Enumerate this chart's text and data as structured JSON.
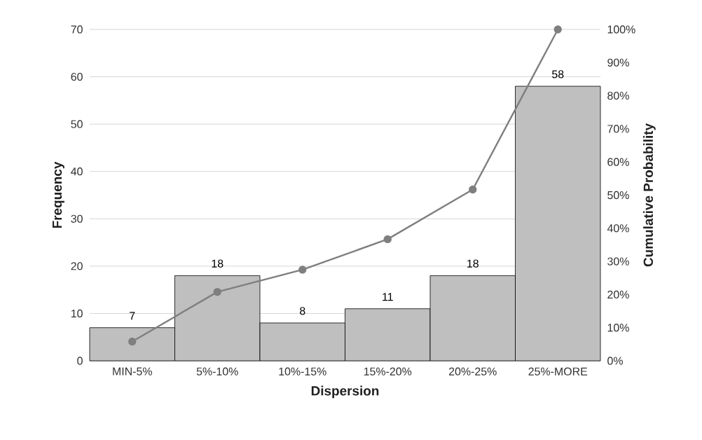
{
  "chart_data": {
    "type": "bar",
    "xlabel": "Dispersion",
    "ylabel": "Frequency",
    "y2label": "Cumulative Probability",
    "categories": [
      "MIN-5%",
      "5%-10%",
      "10%-15%",
      "15%-20%",
      "20%-25%",
      "25%-MORE"
    ],
    "series": [
      {
        "color": "#bfbfbf",
        "values": [
          7,
          18,
          8,
          11,
          18,
          58
        ],
        "value_labels": [
          "7",
          "18",
          "8",
          "11",
          "18",
          "58"
        ]
      },
      {
        "type": "line",
        "axis": "y2",
        "color": "#7f7f7f",
        "marker": "circle",
        "line_style": "solid",
        "values": [
          5.8,
          20.8,
          27.5,
          36.7,
          51.7,
          100
        ]
      }
    ],
    "ylim": [
      0,
      70
    ],
    "yticks": [
      0,
      10,
      20,
      30,
      40,
      50,
      60,
      70
    ],
    "y2lim": [
      0,
      100
    ],
    "y2ticks": [
      {
        "value": 0,
        "label": "0%"
      },
      {
        "value": 10,
        "label": "10%"
      },
      {
        "value": 20,
        "label": "20%"
      },
      {
        "value": 30,
        "label": "30%"
      },
      {
        "value": 40,
        "label": "40%"
      },
      {
        "value": 50,
        "label": "50%"
      },
      {
        "value": 60,
        "label": "60%"
      },
      {
        "value": 70,
        "label": "70%"
      },
      {
        "value": 80,
        "label": "80%"
      },
      {
        "value": 90,
        "label": "90%"
      },
      {
        "value": 100,
        "label": "100%"
      }
    ],
    "grid": "y"
  }
}
